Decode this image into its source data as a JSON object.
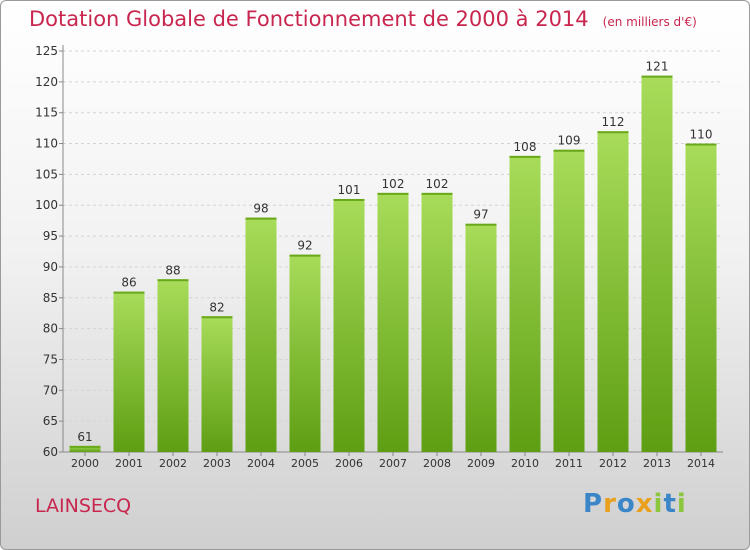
{
  "page": {
    "title": "Dotation Globale de Fonctionnement de 2000 à 2014",
    "subtitle": "(en milliers d'€)",
    "town": "LAINSECQ",
    "logo": "Proxiti"
  },
  "colors": {
    "title": "#c8264f",
    "bar_light": "#a8dc5a",
    "bar_dark": "#5e9e13",
    "logo_letters": [
      "#3b86c9",
      "#e9a11d",
      "#3b86c9",
      "#e9a11d",
      "#8cc63e",
      "#3b86c9",
      "#8cc63e"
    ]
  },
  "chart_data": {
    "type": "bar",
    "title": "Dotation Globale de Fonctionnement de 2000 à 2014",
    "subtitle": "(en milliers d'€)",
    "categories": [
      "2000",
      "2001",
      "2002",
      "2003",
      "2004",
      "2005",
      "2006",
      "2007",
      "2008",
      "2009",
      "2010",
      "2011",
      "2012",
      "2013",
      "2014"
    ],
    "values": [
      61,
      86,
      88,
      82,
      98,
      92,
      101,
      102,
      102,
      97,
      108,
      109,
      112,
      121,
      110
    ],
    "ylim": [
      60,
      125
    ],
    "yticks": [
      60,
      65,
      70,
      75,
      80,
      85,
      90,
      95,
      100,
      105,
      110,
      115,
      120,
      125
    ],
    "grid": true,
    "xlabel": "",
    "ylabel": ""
  }
}
